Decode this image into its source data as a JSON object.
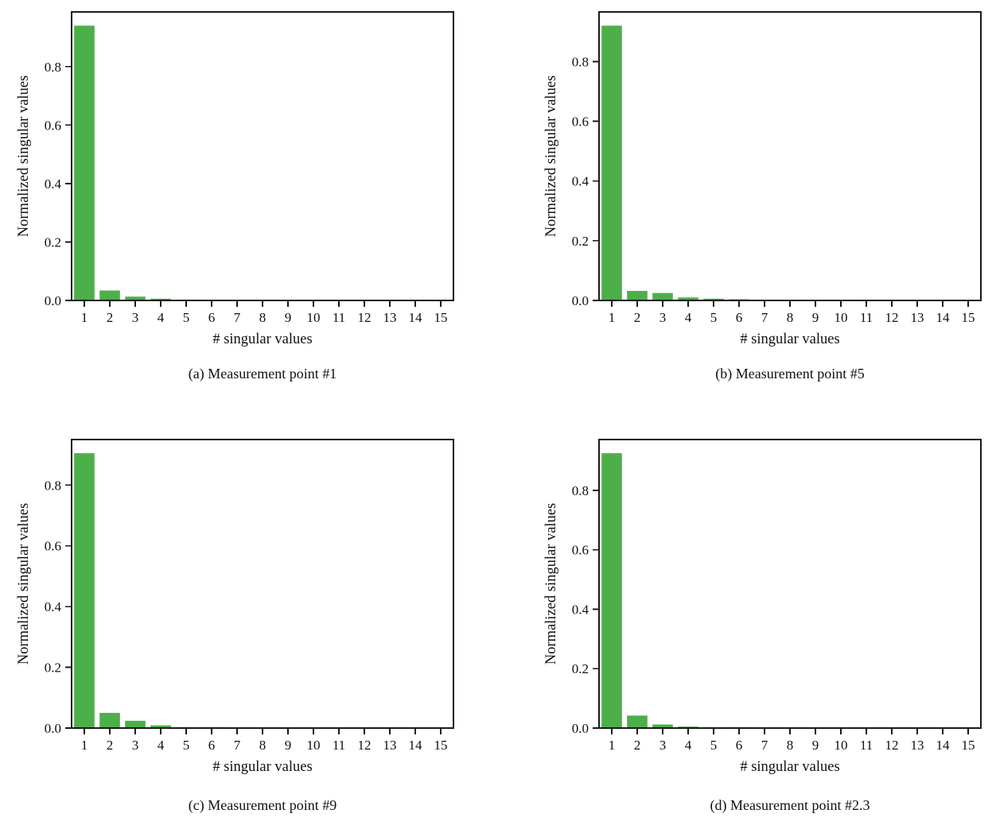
{
  "figure": {
    "background": "#ffffff",
    "text_color": "#111111",
    "axis_color": "#1a1a1a",
    "bar_color": "#4daf4a",
    "xlabel": "# singular values",
    "ylabel": "Normalized singular values"
  },
  "chart_data": [
    {
      "id": "a",
      "type": "bar",
      "caption": "(a) Measurement point #1",
      "title": "",
      "xlabel": "# singular values",
      "ylabel": "Normalized singular values",
      "categories": [
        "1",
        "2",
        "3",
        "4",
        "5",
        "6",
        "7",
        "8",
        "9",
        "10",
        "11",
        "12",
        "13",
        "14",
        "15"
      ],
      "values": [
        0.94,
        0.034,
        0.013,
        0.006,
        0.003,
        0.001,
        0,
        0,
        0,
        0,
        0,
        0,
        0,
        0,
        0
      ],
      "ytick_labels": [
        "0.0",
        "0.2",
        "0.4",
        "0.6",
        "0.8"
      ],
      "ytick_values": [
        0.0,
        0.2,
        0.4,
        0.6,
        0.8
      ],
      "ylim": [
        0,
        0.987
      ],
      "grid": "off",
      "legend": "none"
    },
    {
      "id": "b",
      "type": "bar",
      "caption": "(b) Measurement point #5",
      "title": "",
      "xlabel": "# singular values",
      "ylabel": "Normalized singular values",
      "categories": [
        "1",
        "2",
        "3",
        "4",
        "5",
        "6",
        "7",
        "8",
        "9",
        "10",
        "11",
        "12",
        "13",
        "14",
        "15"
      ],
      "values": [
        0.92,
        0.032,
        0.025,
        0.01,
        0.006,
        0.004,
        0.001,
        0,
        0,
        0,
        0,
        0,
        0,
        0,
        0
      ],
      "ytick_labels": [
        "0.0",
        "0.2",
        "0.4",
        "0.6",
        "0.8"
      ],
      "ytick_values": [
        0.0,
        0.2,
        0.4,
        0.6,
        0.8
      ],
      "ylim": [
        0,
        0.966
      ],
      "grid": "off",
      "legend": "none"
    },
    {
      "id": "c",
      "type": "bar",
      "caption": "(c) Measurement point #9",
      "title": "",
      "xlabel": "# singular values",
      "ylabel": "Normalized singular values",
      "categories": [
        "1",
        "2",
        "3",
        "4",
        "5",
        "6",
        "7",
        "8",
        "9",
        "10",
        "11",
        "12",
        "13",
        "14",
        "15"
      ],
      "values": [
        0.905,
        0.05,
        0.024,
        0.009,
        0.003,
        0.003,
        0.001,
        0,
        0,
        0,
        0,
        0,
        0,
        0,
        0
      ],
      "ytick_labels": [
        "0.0",
        "0.2",
        "0.4",
        "0.6",
        "0.8"
      ],
      "ytick_values": [
        0.0,
        0.2,
        0.4,
        0.6,
        0.8
      ],
      "ylim": [
        0,
        0.95
      ],
      "grid": "off",
      "legend": "none"
    },
    {
      "id": "d",
      "type": "bar",
      "caption": "(d) Measurement point #2.3",
      "title": "",
      "xlabel": "# singular values",
      "ylabel": "Normalized singular values",
      "categories": [
        "1",
        "2",
        "3",
        "4",
        "5",
        "6",
        "7",
        "8",
        "9",
        "10",
        "11",
        "12",
        "13",
        "14",
        "15"
      ],
      "values": [
        0.925,
        0.042,
        0.012,
        0.005,
        0.003,
        0.003,
        0.001,
        0,
        0,
        0,
        0,
        0,
        0,
        0,
        0
      ],
      "ytick_labels": [
        "0.0",
        "0.2",
        "0.4",
        "0.6",
        "0.8"
      ],
      "ytick_values": [
        0.0,
        0.2,
        0.4,
        0.6,
        0.8
      ],
      "ylim": [
        0,
        0.971
      ],
      "grid": "off",
      "legend": "none"
    }
  ]
}
